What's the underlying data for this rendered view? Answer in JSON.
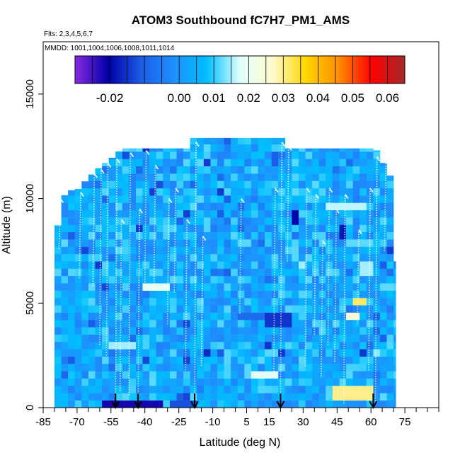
{
  "chart_data": {
    "type": "heatmap",
    "title": "ATOM3 Southbound fC7H7_PM1_AMS",
    "flights_note": "Flts: 2,3,4,5,6,7",
    "dates_note": "MMDD: 1001,1004,1006,1008,1011,1014",
    "xlabel": "Latitude (deg N)",
    "ylabel": "Altitude (m)",
    "xlim": [
      -85,
      90
    ],
    "ylim": [
      0,
      17500
    ],
    "x_ticks": [
      -85,
      -70,
      -55,
      -40,
      -25,
      -10,
      5,
      15,
      30,
      45,
      60,
      75
    ],
    "x_minor_ticks": [
      -80,
      -75,
      -65,
      -60,
      -50,
      -45,
      -35,
      -30,
      -20,
      -15,
      -5,
      0,
      10,
      20,
      25,
      35,
      40,
      50,
      55,
      65,
      70,
      80,
      85,
      90
    ],
    "y_ticks": [
      0,
      5000,
      10000,
      15000
    ],
    "colorbar": {
      "ticks": [
        -0.02,
        0.0,
        0.01,
        0.02,
        0.03,
        0.04,
        0.05,
        0.06
      ],
      "tick_labels": [
        "-0.02",
        "0.00",
        "0.01",
        "0.02",
        "0.03",
        "0.04",
        "0.05",
        "0.06"
      ],
      "range": [
        -0.03,
        0.065
      ],
      "colors": [
        "#8a2be2",
        "#0000a8",
        "#1c5ce6",
        "#1e90ff",
        "#00bfff",
        "#e0ffff",
        "#fffacd",
        "#ffd700",
        "#ff8c00",
        "#ff0000",
        "#a52a2a"
      ]
    },
    "arrows_lat": [
      -53,
      -43,
      -18,
      20,
      61
    ],
    "data_extent": {
      "lat_min": -80,
      "lat_max": 71,
      "alt_min": 0,
      "alt_max": 12900
    },
    "top_profile": [
      {
        "lat": -80,
        "alt": 8000
      },
      {
        "lat": -75,
        "alt": 10400
      },
      {
        "lat": -70,
        "alt": 10400
      },
      {
        "lat": -65,
        "alt": 11000
      },
      {
        "lat": -60,
        "alt": 11500
      },
      {
        "lat": -55,
        "alt": 11900
      },
      {
        "lat": -50,
        "alt": 12400
      },
      {
        "lat": -20,
        "alt": 12400
      },
      {
        "lat": -19,
        "alt": 12900
      },
      {
        "lat": 22,
        "alt": 12900
      },
      {
        "lat": 23,
        "alt": 12400
      },
      {
        "lat": 62,
        "alt": 12400
      },
      {
        "lat": 64,
        "alt": 12000
      },
      {
        "lat": 69,
        "alt": 11000
      },
      {
        "lat": 71,
        "alt": 7000
      }
    ],
    "features": [
      {
        "lat_min": -60,
        "lat_max": -32,
        "alt_min": 0,
        "alt_max": 400,
        "value": -0.022
      },
      {
        "lat_min": -28,
        "lat_max": -18,
        "alt_min": 0,
        "alt_max": 400,
        "value": -0.012
      },
      {
        "lat_min": 44,
        "lat_max": 60,
        "alt_min": 300,
        "alt_max": 1200,
        "value": 0.03
      },
      {
        "lat_min": 49,
        "lat_max": 60,
        "alt_min": 700,
        "alt_max": 1100,
        "value": 0.036
      },
      {
        "lat_min": 52,
        "lat_max": 58,
        "alt_min": 4800,
        "alt_max": 5200,
        "value": 0.032
      },
      {
        "lat_min": 48,
        "lat_max": 56,
        "alt_min": 4300,
        "alt_max": 4700,
        "value": 0.025
      },
      {
        "lat_min": 14,
        "lat_max": 24,
        "alt_min": 4000,
        "alt_max": 4700,
        "value": -0.015
      },
      {
        "lat_min": 0,
        "lat_max": 12,
        "alt_min": 4300,
        "alt_max": 4700,
        "value": -0.008
      },
      {
        "lat_min": 27,
        "lat_max": 34,
        "alt_min": 3700,
        "alt_max": 4000,
        "value": 0.02
      },
      {
        "lat_min": -40,
        "lat_max": -28,
        "alt_min": 5500,
        "alt_max": 6000,
        "value": 0.02
      },
      {
        "lat_min": -55,
        "lat_max": -44,
        "alt_min": 2800,
        "alt_max": 3100,
        "value": 0.015
      },
      {
        "lat_min": 8,
        "lat_max": 18,
        "alt_min": 1500,
        "alt_max": 1900,
        "value": 0.018
      },
      {
        "lat_min": 50,
        "lat_max": 60,
        "alt_min": 7800,
        "alt_max": 8100,
        "value": 0.012
      },
      {
        "lat_min": 40,
        "lat_max": 58,
        "alt_min": 9500,
        "alt_max": 9800,
        "value": 0.016
      },
      {
        "lat_min": 28,
        "lat_max": 32,
        "alt_min": 6600,
        "alt_max": 7000,
        "value": 0.015
      },
      {
        "lat_min": 56,
        "lat_max": 60,
        "alt_min": 6400,
        "alt_max": 6900,
        "value": 0.015
      },
      {
        "lat_min": 60,
        "lat_max": 64,
        "alt_min": 2300,
        "alt_max": 2800,
        "value": 0.014
      },
      {
        "lat_min": 25,
        "lat_max": 28,
        "alt_min": 8600,
        "alt_max": 9300,
        "value": -0.02
      },
      {
        "lat_min": 46,
        "lat_max": 48,
        "alt_min": 8200,
        "alt_max": 8800,
        "value": -0.018
      },
      {
        "lat_min": -58,
        "lat_max": -53,
        "alt_min": 5100,
        "alt_max": 5400,
        "value": -0.01
      },
      {
        "lat_min": 65,
        "lat_max": 70,
        "alt_min": 5600,
        "alt_max": 6000,
        "value": 0.012
      }
    ],
    "profile_traces": [
      {
        "lat": -78,
        "alt_min": 7600,
        "alt_max": 10000
      },
      {
        "lat": -69,
        "alt_min": 6200,
        "alt_max": 10300
      },
      {
        "lat": -63,
        "alt_min": 5800,
        "alt_max": 11200
      },
      {
        "lat": -60,
        "alt_min": 3000,
        "alt_max": 11400
      },
      {
        "lat": -57,
        "alt_min": 2500,
        "alt_max": 11700
      },
      {
        "lat": -53,
        "alt_min": 200,
        "alt_max": 11900
      },
      {
        "lat": -51,
        "alt_min": 800,
        "alt_max": 9000
      },
      {
        "lat": -47,
        "alt_min": 600,
        "alt_max": 12200
      },
      {
        "lat": -43,
        "alt_min": 200,
        "alt_max": 9500
      },
      {
        "lat": -40,
        "alt_min": 6000,
        "alt_max": 12300
      },
      {
        "lat": -36,
        "alt_min": 5800,
        "alt_max": 11600
      },
      {
        "lat": -30,
        "alt_min": 4000,
        "alt_max": 10000
      },
      {
        "lat": -27,
        "alt_min": 5500,
        "alt_max": 10500
      },
      {
        "lat": -22,
        "alt_min": 1800,
        "alt_max": 9000
      },
      {
        "lat": -18,
        "alt_min": 200,
        "alt_max": 12700
      },
      {
        "lat": -15,
        "alt_min": 2000,
        "alt_max": 8200
      },
      {
        "lat": 2,
        "alt_min": 4500,
        "alt_max": 10000
      },
      {
        "lat": 17,
        "alt_min": 1500,
        "alt_max": 10500
      },
      {
        "lat": 20,
        "alt_min": 200,
        "alt_max": 12700
      },
      {
        "lat": 23,
        "alt_min": 7000,
        "alt_max": 12500
      },
      {
        "lat": 31,
        "alt_min": 2000,
        "alt_max": 10500
      },
      {
        "lat": 35,
        "alt_min": 3500,
        "alt_max": 10200
      },
      {
        "lat": 38,
        "alt_min": 1500,
        "alt_max": 8000
      },
      {
        "lat": 41,
        "alt_min": 3000,
        "alt_max": 10500
      },
      {
        "lat": 44,
        "alt_min": 2200,
        "alt_max": 9500
      },
      {
        "lat": 48,
        "alt_min": 200,
        "alt_max": 10200
      },
      {
        "lat": 54,
        "alt_min": 4000,
        "alt_max": 8500
      },
      {
        "lat": 59,
        "alt_min": 1800,
        "alt_max": 10500
      },
      {
        "lat": 62,
        "alt_min": 200,
        "alt_max": 12000
      },
      {
        "lat": 66,
        "alt_min": 7500,
        "alt_max": 11800
      }
    ]
  }
}
